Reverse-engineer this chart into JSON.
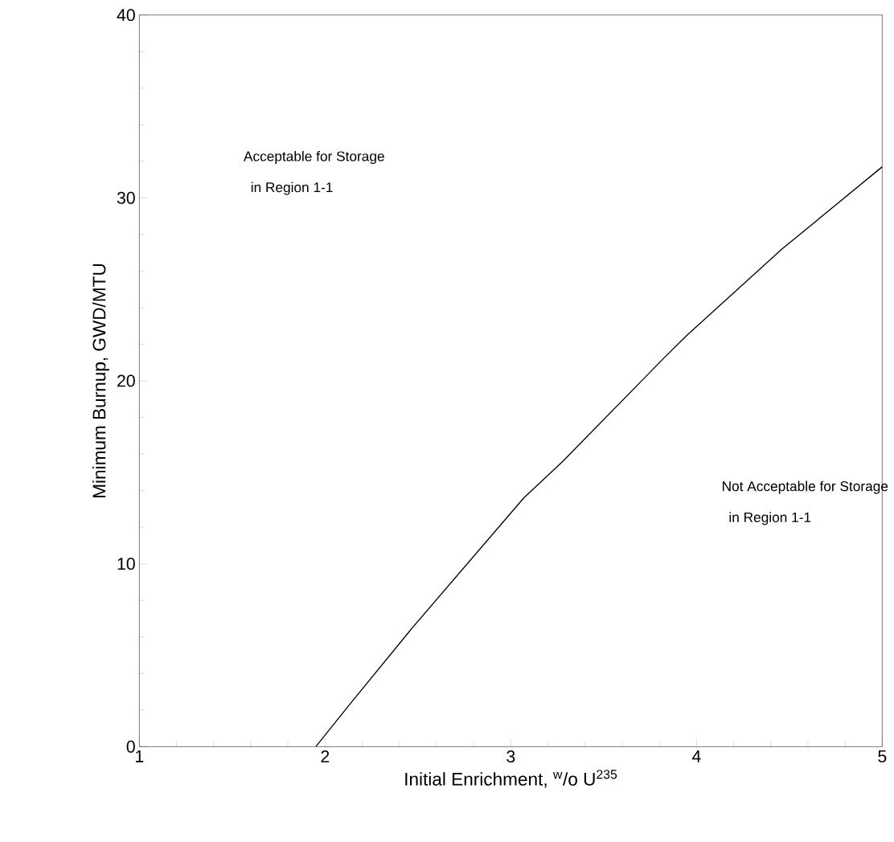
{
  "chart_data": {
    "type": "line",
    "xlabel": "Initial Enrichment, $^{w}$/o U$^{235}$",
    "ylabel": "Minimum Burnup, GWD/MTU",
    "x": [
      1.95,
      2.14,
      2.47,
      3.07,
      3.28,
      3.83,
      3.95,
      4.46,
      5.0
    ],
    "series": [
      {
        "color": "#000000",
        "values": [
          0,
          2.4,
          6.5,
          13.6,
          15.6,
          21.3,
          22.5,
          27.2,
          31.7
        ]
      }
    ],
    "xlim": [
      1,
      5
    ],
    "ylim": [
      0,
      40
    ],
    "xticks": [
      1,
      2,
      3,
      4,
      5
    ],
    "yticks": [
      0,
      10,
      20,
      30,
      40
    ],
    "grid": false,
    "marker": "none",
    "line_style": "solid",
    "annotations": [
      "Acceptable for Storage",
      " in Region 1-1",
      "Not Acceptable for Storage",
      " in Region 1-1"
    ]
  }
}
